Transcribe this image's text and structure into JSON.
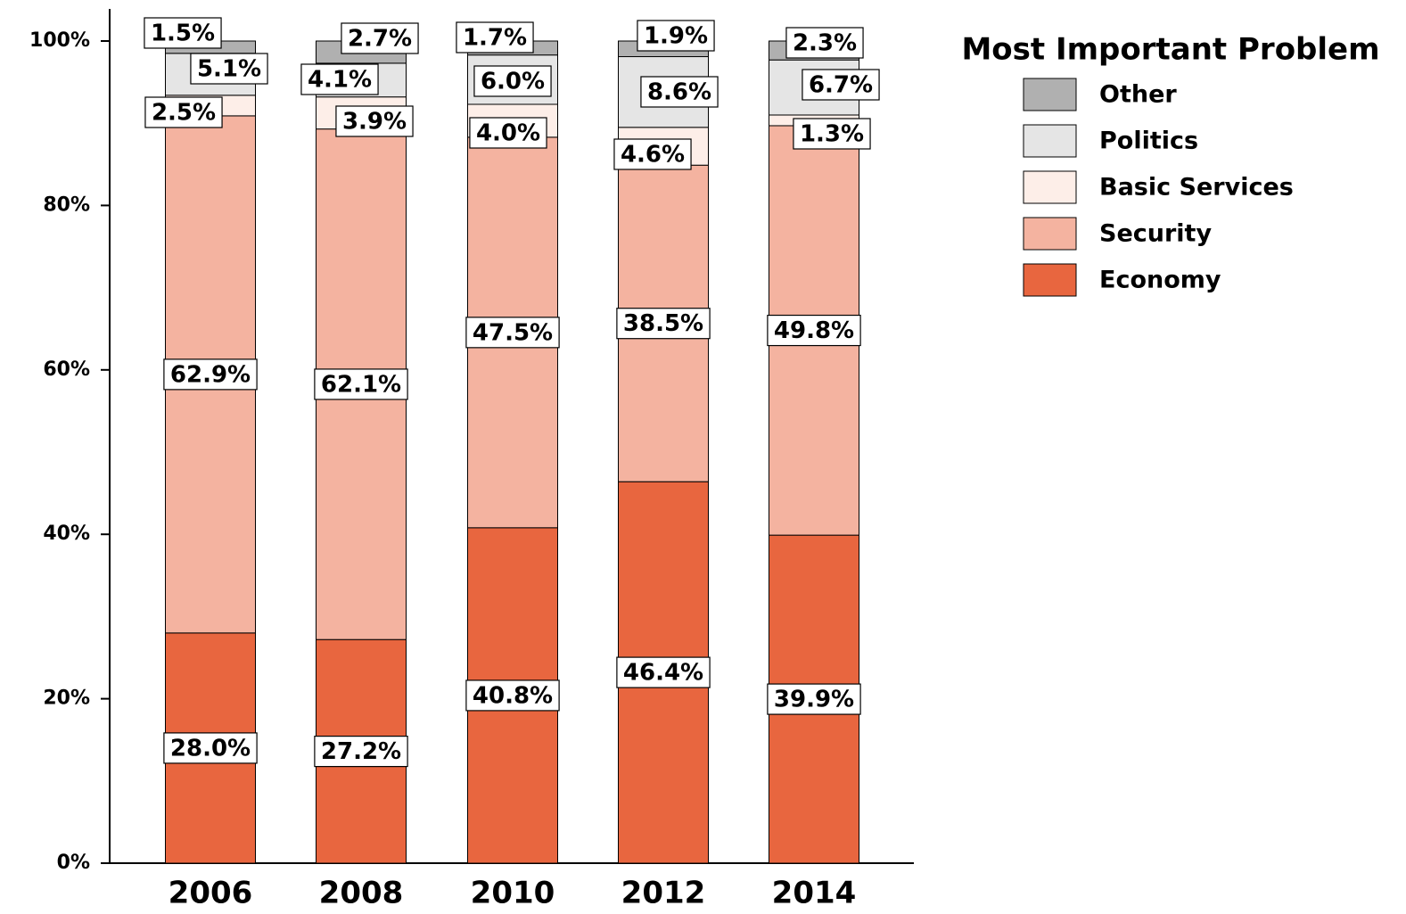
{
  "chart_data": {
    "type": "stacked_bar",
    "categories": [
      "2006",
      "2008",
      "2010",
      "2012",
      "2014"
    ],
    "legend_title": "Most Important Problem",
    "series": [
      {
        "name": "Economy",
        "color": "#e8663f",
        "values": [
          28.0,
          27.2,
          40.8,
          46.4,
          39.9
        ],
        "value_labels": [
          "28.0%",
          "27.2%",
          "40.8%",
          "46.4%",
          "39.9%"
        ]
      },
      {
        "name": "Security",
        "color": "#f4b3a0",
        "values": [
          62.9,
          62.1,
          47.5,
          38.5,
          49.8
        ],
        "value_labels": [
          "62.9%",
          "62.1%",
          "47.5%",
          "38.5%",
          "49.8%"
        ]
      },
      {
        "name": "Basic Services",
        "color": "#fdeee8",
        "values": [
          2.5,
          3.9,
          4.0,
          4.6,
          1.3
        ],
        "value_labels": [
          "2.5%",
          "3.9%",
          "4.0%",
          "4.6%",
          "1.3%"
        ]
      },
      {
        "name": "Politics",
        "color": "#e5e5e5",
        "values": [
          5.1,
          4.1,
          6.0,
          8.6,
          6.7
        ],
        "value_labels": [
          "5.1%",
          "4.1%",
          "6.0%",
          "8.6%",
          "6.7%"
        ]
      },
      {
        "name": "Other",
        "color": "#b0b0b0",
        "values": [
          1.5,
          2.7,
          1.7,
          1.9,
          2.3
        ],
        "value_labels": [
          "1.5%",
          "2.7%",
          "1.7%",
          "1.9%",
          "2.3%"
        ]
      }
    ],
    "ylim": [
      0,
      100
    ],
    "yticks": [
      {
        "value": 0,
        "label": "0%"
      },
      {
        "value": 20,
        "label": "20%"
      },
      {
        "value": 40,
        "label": "40%"
      },
      {
        "value": 60,
        "label": "60%"
      },
      {
        "value": 80,
        "label": "80%"
      },
      {
        "value": 100,
        "label": "100%"
      }
    ],
    "legend_position": "upper right"
  }
}
